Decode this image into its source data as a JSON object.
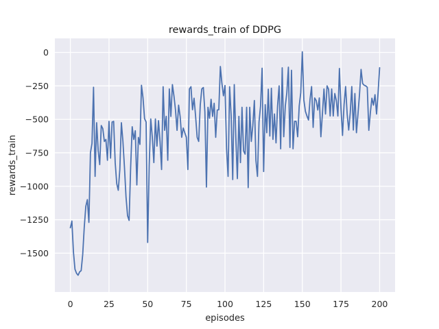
{
  "chart_data": {
    "type": "line",
    "title": "rewards_train of DDPG",
    "xlabel": "episodes",
    "ylabel": "rewards_train",
    "x_ticks": [
      0,
      25,
      50,
      75,
      100,
      125,
      150,
      175,
      200
    ],
    "y_ticks": [
      0,
      -250,
      -500,
      -750,
      -1000,
      -1250,
      -1500
    ],
    "xlim": [
      -10,
      210
    ],
    "ylim": [
      -1790,
      105
    ],
    "grid": true,
    "legend": "none",
    "style": {
      "axes_background": "#eaeaf2",
      "grid_color": "#ffffff",
      "line_color": "#4c72b0",
      "text_color": "#262626"
    },
    "series": [
      {
        "name": "rewards_train",
        "color": "#4c72b0",
        "x": [
          0,
          1,
          2,
          3,
          4,
          5,
          6,
          7,
          8,
          9,
          10,
          11,
          12,
          13,
          14,
          15,
          16,
          17,
          18,
          19,
          20,
          21,
          22,
          23,
          24,
          25,
          26,
          27,
          28,
          29,
          30,
          31,
          32,
          33,
          34,
          35,
          36,
          37,
          38,
          39,
          40,
          41,
          42,
          43,
          44,
          45,
          46,
          47,
          48,
          49,
          50,
          51,
          52,
          53,
          54,
          55,
          56,
          57,
          58,
          59,
          60,
          61,
          62,
          63,
          64,
          65,
          66,
          67,
          68,
          69,
          70,
          71,
          72,
          73,
          74,
          75,
          76,
          77,
          78,
          79,
          80,
          81,
          82,
          83,
          84,
          85,
          86,
          87,
          88,
          89,
          90,
          91,
          92,
          93,
          94,
          95,
          96,
          97,
          98,
          99,
          100,
          101,
          102,
          103,
          104,
          105,
          106,
          107,
          108,
          109,
          110,
          111,
          112,
          113,
          114,
          115,
          116,
          117,
          118,
          119,
          120,
          121,
          122,
          123,
          124,
          125,
          126,
          127,
          128,
          129,
          130,
          131,
          132,
          133,
          134,
          135,
          136,
          137,
          138,
          139,
          140,
          141,
          142,
          143,
          144,
          145,
          146,
          147,
          148,
          149,
          150,
          151,
          152,
          153,
          154,
          155,
          156,
          157,
          158,
          159,
          160,
          161,
          162,
          163,
          164,
          165,
          166,
          167,
          168,
          169,
          170,
          171,
          172,
          173,
          174,
          175,
          176,
          177,
          178,
          179,
          180,
          181,
          182,
          183,
          184,
          185,
          186,
          187,
          188,
          189,
          190,
          191,
          192,
          193,
          194,
          195,
          196,
          197,
          198,
          199,
          200
        ],
        "y": [
          -1310,
          -1260,
          -1490,
          -1620,
          -1650,
          -1665,
          -1640,
          -1630,
          -1510,
          -1305,
          -1150,
          -1100,
          -1270,
          -750,
          -680,
          -260,
          -926,
          -525,
          -734,
          -838,
          -546,
          -570,
          -665,
          -650,
          -806,
          -515,
          -790,
          -520,
          -515,
          -823,
          -980,
          -1030,
          -875,
          -525,
          -665,
          -858,
          -1080,
          -1220,
          -1255,
          -857,
          -555,
          -650,
          -585,
          -990,
          -635,
          -687,
          -245,
          -340,
          -495,
          -520,
          -1420,
          -840,
          -497,
          -634,
          -823,
          -497,
          -700,
          -510,
          -665,
          -875,
          -256,
          -582,
          -478,
          -806,
          -273,
          -478,
          -240,
          -325,
          -430,
          -582,
          -394,
          -478,
          -634,
          -565,
          -600,
          -634,
          -875,
          -273,
          -256,
          -428,
          -342,
          -478,
          -634,
          -665,
          -394,
          -273,
          -262,
          -445,
          -1006,
          -410,
          -492,
          -350,
          -478,
          -380,
          -634,
          -430,
          -428,
          -105,
          -230,
          -324,
          -247,
          -718,
          -926,
          -256,
          -478,
          -950,
          -240,
          -634,
          -943,
          -478,
          -823,
          -410,
          -735,
          -760,
          -410,
          -1010,
          -410,
          -665,
          -546,
          -359,
          -806,
          -926,
          -520,
          -400,
          -118,
          -890,
          -390,
          -600,
          -275,
          -625,
          -268,
          -650,
          -460,
          -676,
          -400,
          -250,
          -720,
          -115,
          -630,
          -400,
          -300,
          -110,
          -710,
          -133,
          -720,
          -515,
          -515,
          -630,
          -400,
          -300,
          5,
          -355,
          -440,
          -475,
          -505,
          -350,
          -255,
          -560,
          -340,
          -360,
          -430,
          -340,
          -630,
          -460,
          -273,
          -460,
          -250,
          -275,
          -475,
          -273,
          -475,
          -307,
          -360,
          -475,
          -120,
          -415,
          -620,
          -390,
          -255,
          -460,
          -580,
          -450,
          -255,
          -580,
          -307,
          -600,
          -460,
          -310,
          -127,
          -232,
          -245,
          -250,
          -260,
          -582,
          -450,
          -342,
          -394,
          -316,
          -460,
          -300,
          -114
        ]
      }
    ]
  }
}
